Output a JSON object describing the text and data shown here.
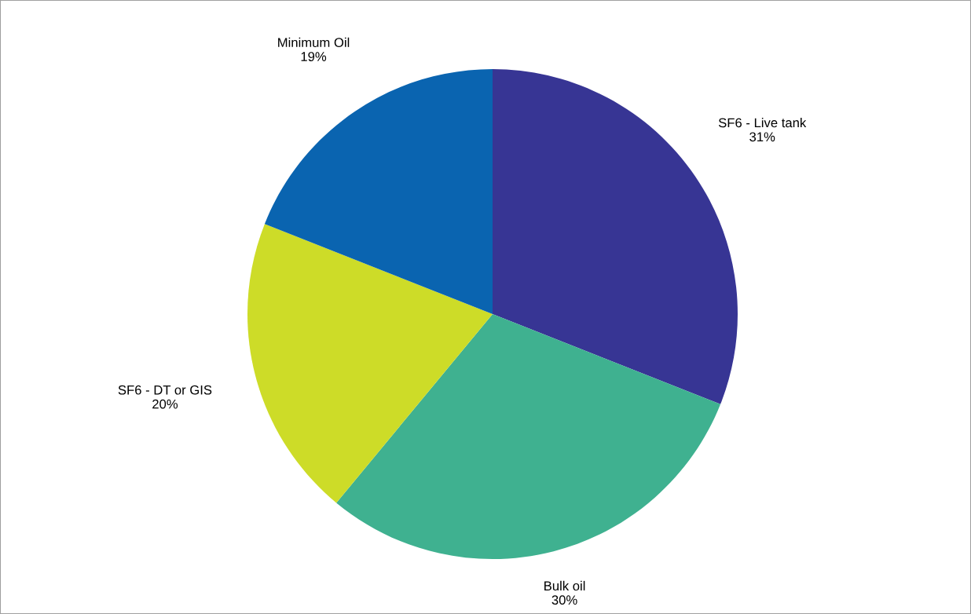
{
  "chart_data": {
    "type": "pie",
    "categories": [
      "SF6 - Live tank",
      "Bulk oil",
      "SF6 - DT or GIS",
      "Minimum Oil"
    ],
    "values": [
      31,
      30,
      20,
      19
    ],
    "colors": [
      "#373594",
      "#3fb190",
      "#cddc28",
      "#0a64b0"
    ],
    "value_labels": [
      "31%",
      "30%",
      "20%",
      "19%"
    ]
  }
}
